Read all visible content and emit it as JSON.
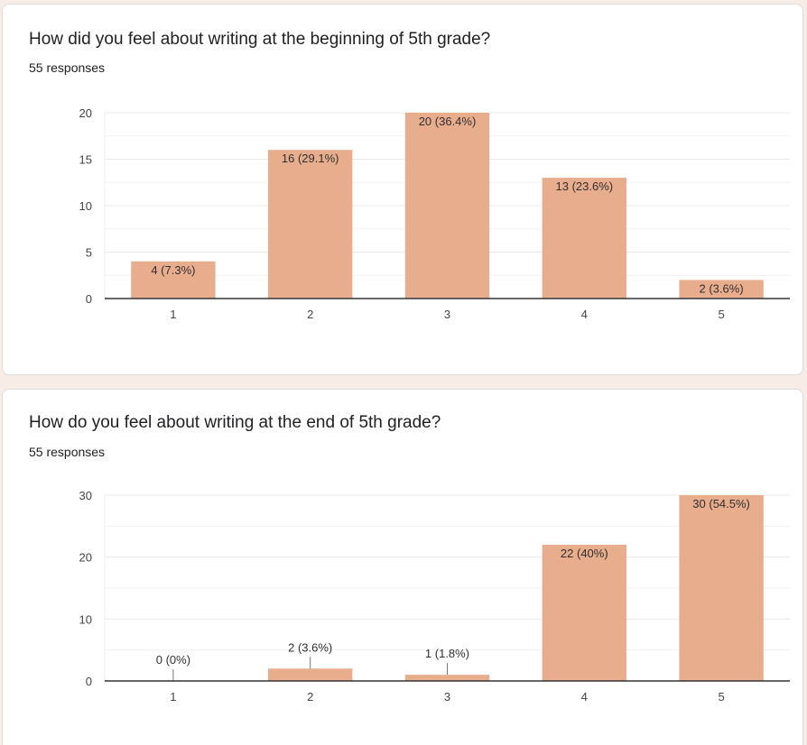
{
  "colors": {
    "bar": "#e8ad8d",
    "grid": "#e8e8e8",
    "axis": "#333333",
    "background": "#f7ece6"
  },
  "cards": [
    {
      "title": "How did you feel about writing at the beginning of 5th grade?",
      "responses": "55 responses"
    },
    {
      "title": "How do you feel about writing at the end of 5th grade?",
      "responses": "55 responses"
    }
  ],
  "chart_data": [
    {
      "type": "bar",
      "categories": [
        "1",
        "2",
        "3",
        "4",
        "5"
      ],
      "values": [
        4,
        16,
        20,
        13,
        2
      ],
      "data_labels": [
        "4 (7.3%)",
        "16 (29.1%)",
        "20 (36.4%)",
        "13 (23.6%)",
        "2 (3.6%)"
      ],
      "ylim": [
        0,
        20
      ],
      "yticks": [
        0,
        5,
        10,
        15,
        20
      ],
      "minor_gridlines": true,
      "grid": true
    },
    {
      "type": "bar",
      "categories": [
        "1",
        "2",
        "3",
        "4",
        "5"
      ],
      "values": [
        0,
        2,
        1,
        22,
        30
      ],
      "data_labels": [
        "0 (0%)",
        "2 (3.6%)",
        "1 (1.8%)",
        "22 (40%)",
        "30 (54.5%)"
      ],
      "ylim": [
        0,
        30
      ],
      "yticks": [
        0,
        10,
        20,
        30
      ],
      "minor_gridlines": true,
      "grid": true
    }
  ]
}
